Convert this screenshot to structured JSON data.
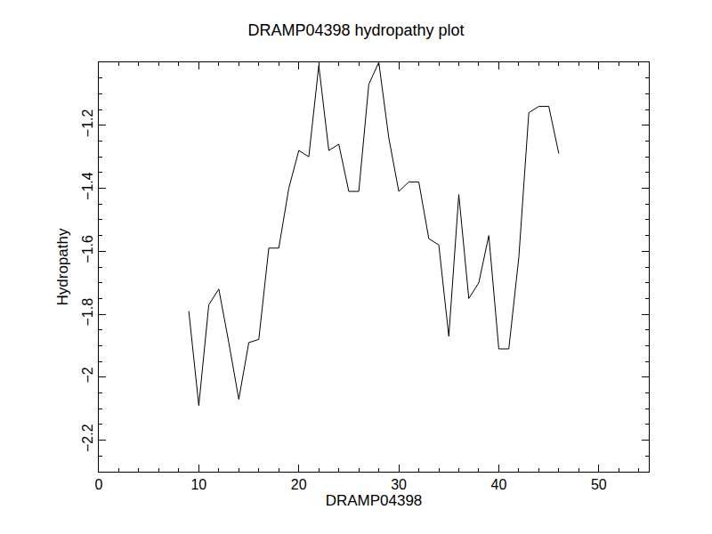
{
  "chart_data": {
    "type": "line",
    "title": "DRAMP04398 hydropathy plot",
    "x_label": "DRAMP04398",
    "y_label": "Hydropathy",
    "x": [
      9,
      10,
      11,
      12,
      13,
      14,
      15,
      16,
      17,
      18,
      19,
      20,
      21,
      22,
      23,
      24,
      25,
      26,
      27,
      28,
      29,
      30,
      31,
      32,
      33,
      34,
      35,
      36,
      37,
      38,
      39,
      40,
      41,
      42,
      43,
      44,
      45,
      46
    ],
    "values": [
      -1.79,
      -2.09,
      -1.77,
      -1.72,
      -1.89,
      -2.07,
      -1.89,
      -1.88,
      -1.59,
      -1.59,
      -1.4,
      -1.28,
      -1.3,
      -1.01,
      -1.28,
      -1.26,
      -1.41,
      -1.41,
      -1.07,
      -1.0,
      -1.24,
      -1.41,
      -1.38,
      -1.38,
      -1.56,
      -1.58,
      -1.87,
      -1.42,
      -1.75,
      -1.7,
      -1.55,
      -1.91,
      -1.91,
      -1.62,
      -1.16,
      -1.14,
      -1.14,
      -1.29
    ],
    "color": "#000000",
    "xlim": [
      0,
      55
    ],
    "xticks": [
      0,
      10,
      20,
      30,
      40,
      50
    ],
    "ylim": [
      -2.3,
      -1.0
    ],
    "yticks": [
      -2.2,
      -2.0,
      -1.8,
      -1.6,
      -1.4,
      -1.2
    ],
    "grid": false
  }
}
